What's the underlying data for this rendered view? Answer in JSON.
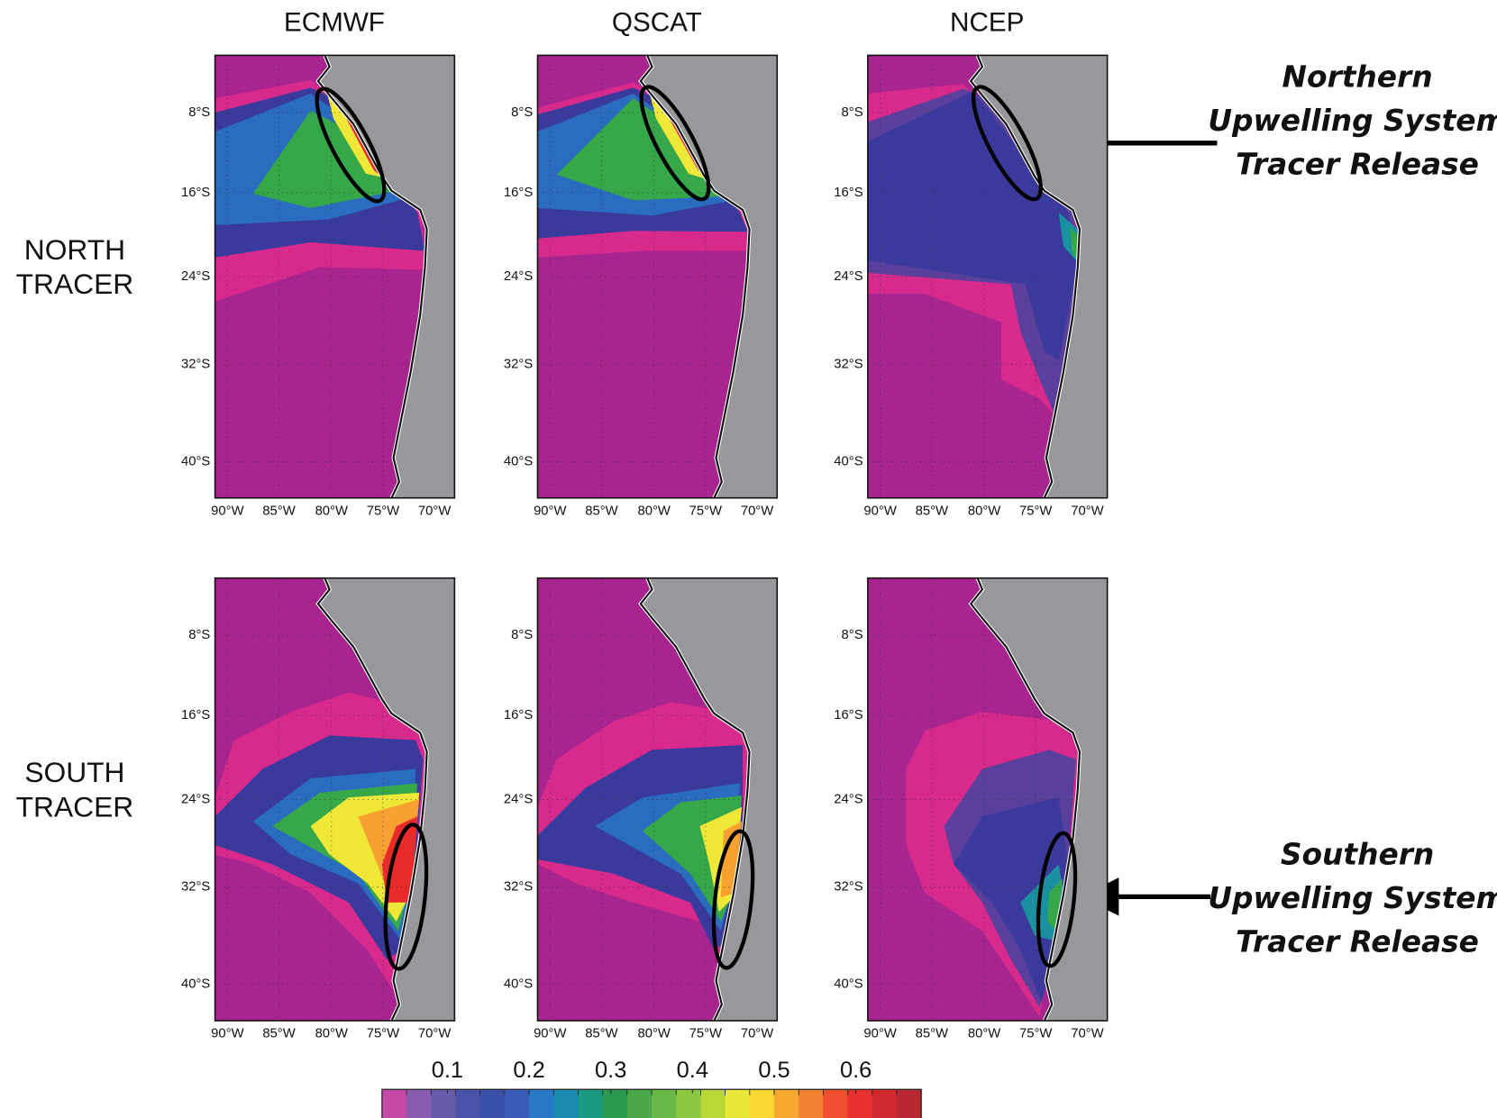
{
  "columns": [
    "ECMWF",
    "QSCAT",
    "NCEP"
  ],
  "rows": [
    [
      "NORTH",
      "TRACER"
    ],
    [
      "SOUTH",
      "TRACER"
    ]
  ],
  "lat_ticks": [
    "8°S",
    "16°S",
    "24°S",
    "32°S",
    "40°S"
  ],
  "lon_ticks": [
    "90°W",
    "85°W",
    "80°W",
    "75°W",
    "70°W"
  ],
  "annotations": [
    [
      "Northern",
      "Upwelling System",
      "Tracer Release"
    ],
    [
      "Southern",
      "Upwelling System",
      "Tracer Release"
    ]
  ],
  "colorbar": {
    "lim": [
      0.02,
      0.68
    ],
    "ticks": [
      0.1,
      0.2,
      0.3,
      0.4,
      0.5,
      0.6
    ]
  }
}
